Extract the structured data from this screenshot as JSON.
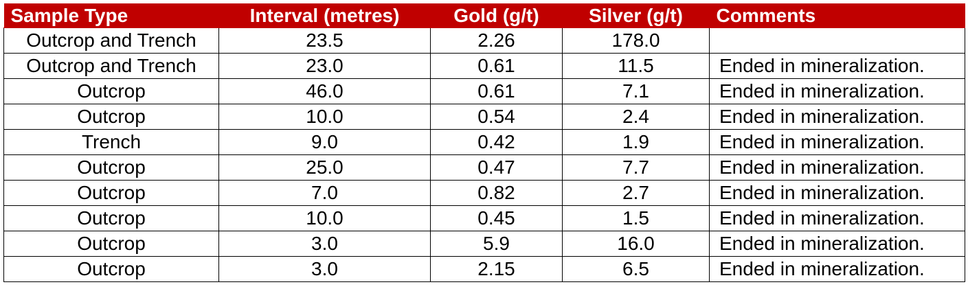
{
  "colors": {
    "header_background": "#c00000",
    "header_text": "#ffffff",
    "grid": "#000000"
  },
  "table": {
    "headers": [
      "Sample Type",
      "Interval (metres)",
      "Gold (g/t)",
      "Silver (g/t)",
      "Comments"
    ],
    "rows": [
      [
        "Outcrop and Trench",
        "23.5",
        "2.26",
        "178.0",
        ""
      ],
      [
        "Outcrop and Trench",
        "23.0",
        "0.61",
        "11.5",
        "Ended in mineralization."
      ],
      [
        "Outcrop",
        "46.0",
        "0.61",
        "7.1",
        "Ended in mineralization."
      ],
      [
        "Outcrop",
        "10.0",
        "0.54",
        "2.4",
        "Ended in mineralization."
      ],
      [
        "Trench",
        "9.0",
        "0.42",
        "1.9",
        "Ended in mineralization."
      ],
      [
        "Outcrop",
        "25.0",
        "0.47",
        "7.7",
        "Ended in mineralization."
      ],
      [
        "Outcrop",
        "7.0",
        "0.82",
        "2.7",
        "Ended in mineralization."
      ],
      [
        "Outcrop",
        "10.0",
        "0.45",
        "1.5",
        "Ended in mineralization."
      ],
      [
        "Outcrop",
        "3.0",
        "5.9",
        "16.0",
        "Ended in mineralization."
      ],
      [
        "Outcrop",
        "3.0",
        "2.15",
        "6.5",
        "Ended in mineralization."
      ]
    ]
  }
}
